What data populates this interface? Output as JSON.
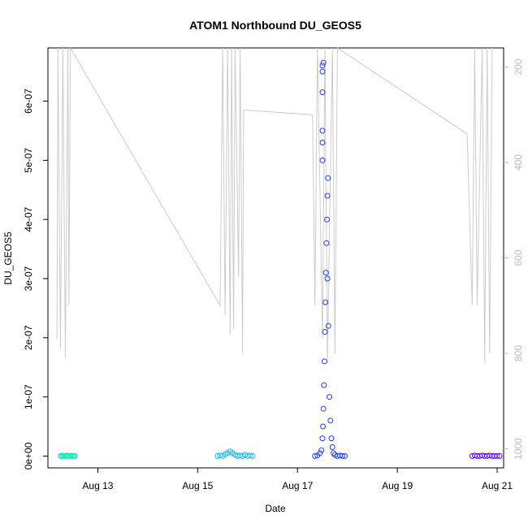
{
  "chart_data": {
    "type": "scatter",
    "title": "ATOM1 Northbound DU_GEOS5",
    "xlabel": "Date",
    "ylabel": "DU_GEOS5",
    "x_ticks": [
      "Aug 13",
      "Aug 15",
      "Aug 17",
      "Aug 19",
      "Aug 21"
    ],
    "y_ticks": [
      "0e+00",
      "1e-07",
      "2e-07",
      "3e-07",
      "4e-07",
      "5e-07",
      "6e-07"
    ],
    "y2_ticks": [
      "200",
      "400",
      "600",
      "800",
      "1000"
    ],
    "xlim_days": [
      12.0,
      21.13
    ],
    "ylim": [
      -2e-08,
      6.9e-07
    ],
    "y2lim": [
      1040,
      160
    ],
    "y2_reversed": true,
    "grid": false,
    "colors": {
      "pressure_line": "#cccccc",
      "right_axis": "#bdbdbd",
      "cluster1": "#1fe8b8",
      "cluster2": "#18b8f0",
      "cluster3": "#2040f0",
      "cluster4": "#6010f0"
    },
    "series": [
      {
        "role": "points",
        "color_key": "cluster1",
        "points": [
          [
            12.25,
            0.0
          ],
          [
            12.28,
            0.0
          ],
          [
            12.3,
            1e-09
          ],
          [
            12.33,
            0.0
          ],
          [
            12.36,
            0.0
          ],
          [
            12.38,
            1e-09
          ],
          [
            12.4,
            0.0
          ],
          [
            12.42,
            0.0
          ],
          [
            12.45,
            1e-09
          ],
          [
            12.47,
            0.0
          ],
          [
            12.5,
            0.0
          ],
          [
            12.52,
            0.0
          ],
          [
            12.54,
            0.0
          ]
        ]
      },
      {
        "role": "points",
        "color_key": "cluster2",
        "points": [
          [
            15.4,
            0.0
          ],
          [
            15.45,
            1e-09
          ],
          [
            15.5,
            0.0
          ],
          [
            15.55,
            3e-09
          ],
          [
            15.6,
            5e-09
          ],
          [
            15.65,
            8e-09
          ],
          [
            15.7,
            5e-09
          ],
          [
            15.75,
            2e-09
          ],
          [
            15.8,
            0.0
          ],
          [
            15.85,
            1e-09
          ],
          [
            15.9,
            0.0
          ],
          [
            15.95,
            2e-09
          ],
          [
            16.0,
            0.0
          ],
          [
            16.05,
            1e-09
          ],
          [
            16.1,
            0.0
          ]
        ]
      },
      {
        "role": "points",
        "color_key": "cluster3",
        "points": [
          [
            17.35,
            0.0
          ],
          [
            17.4,
            1e-09
          ],
          [
            17.45,
            5e-09
          ],
          [
            17.48,
            1e-08
          ],
          [
            17.5,
            3e-08
          ],
          [
            17.51,
            5e-08
          ],
          [
            17.52,
            8e-08
          ],
          [
            17.53,
            1.2e-07
          ],
          [
            17.54,
            1.6e-07
          ],
          [
            17.55,
            2.1e-07
          ],
          [
            17.56,
            2.6e-07
          ],
          [
            17.57,
            3.1e-07
          ],
          [
            17.58,
            3.6e-07
          ],
          [
            17.59,
            4e-07
          ],
          [
            17.6,
            4.4e-07
          ],
          [
            17.61,
            4.7e-07
          ],
          [
            17.5,
            5e-07
          ],
          [
            17.5,
            5.3e-07
          ],
          [
            17.5,
            5.5e-07
          ],
          [
            17.5,
            6.15e-07
          ],
          [
            17.5,
            6.5e-07
          ],
          [
            17.5,
            6.6e-07
          ],
          [
            17.52,
            6.65e-07
          ],
          [
            17.6,
            3e-07
          ],
          [
            17.62,
            2.2e-07
          ],
          [
            17.64,
            1e-07
          ],
          [
            17.66,
            6e-08
          ],
          [
            17.68,
            3e-08
          ],
          [
            17.7,
            1.5e-08
          ],
          [
            17.72,
            5e-09
          ],
          [
            17.75,
            2e-09
          ],
          [
            17.8,
            0.0
          ],
          [
            17.85,
            1e-09
          ],
          [
            17.9,
            0.0
          ],
          [
            17.95,
            0.0
          ]
        ]
      },
      {
        "role": "points",
        "color_key": "cluster4",
        "points": [
          [
            20.5,
            0.0
          ],
          [
            20.55,
            1e-09
          ],
          [
            20.6,
            0.0
          ],
          [
            20.65,
            0.0
          ],
          [
            20.7,
            1e-09
          ],
          [
            20.75,
            0.0
          ],
          [
            20.8,
            0.0
          ],
          [
            20.85,
            1e-09
          ],
          [
            20.9,
            0.0
          ],
          [
            20.95,
            0.0
          ],
          [
            21.0,
            0.0
          ],
          [
            21.05,
            0.0
          ]
        ]
      },
      {
        "role": "pressure",
        "color_key": "pressure_line",
        "points": [
          [
            12.18,
            770
          ],
          [
            12.2,
            140
          ],
          [
            12.25,
            790
          ],
          [
            12.3,
            150
          ],
          [
            12.35,
            810
          ],
          [
            12.4,
            160
          ],
          [
            12.42,
            700
          ],
          [
            12.45,
            150
          ],
          [
            15.45,
            700
          ],
          [
            15.5,
            140
          ],
          [
            15.55,
            720
          ],
          [
            15.6,
            150
          ],
          [
            15.65,
            760
          ],
          [
            15.68,
            140
          ],
          [
            15.72,
            750
          ],
          [
            15.75,
            160
          ],
          [
            15.82,
            640
          ],
          [
            15.85,
            160
          ],
          [
            15.9,
            800
          ],
          [
            15.92,
            290
          ],
          [
            17.3,
            300
          ],
          [
            17.35,
            700
          ],
          [
            17.4,
            140
          ],
          [
            17.5,
            770
          ],
          [
            17.55,
            140
          ],
          [
            17.6,
            820
          ],
          [
            17.7,
            140
          ],
          [
            17.75,
            800
          ],
          [
            17.8,
            140
          ],
          [
            20.4,
            340
          ],
          [
            20.5,
            700
          ],
          [
            20.55,
            140
          ],
          [
            20.6,
            700
          ],
          [
            20.7,
            140
          ],
          [
            20.75,
            820
          ],
          [
            20.8,
            140
          ],
          [
            20.85,
            800
          ],
          [
            20.9,
            140
          ]
        ]
      }
    ]
  }
}
